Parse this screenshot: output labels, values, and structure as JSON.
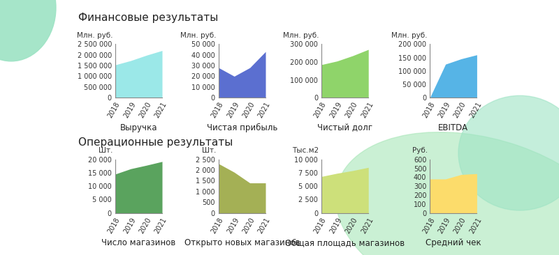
{
  "headings": [
    "Финансовые результаты",
    "Операционные результаты"
  ],
  "chart_data": [
    {
      "type": "area",
      "title": "Выручка",
      "ylabel": "Млн. руб.",
      "categories": [
        "2018",
        "2019",
        "2020",
        "2021"
      ],
      "values": [
        1530000,
        1730000,
        1980000,
        2200000
      ],
      "color": "#9be8e8",
      "ylim": [
        0,
        2500000
      ],
      "yticks": [
        0,
        {
          "value": 500000,
          "label": "500 000"
        },
        {
          "value": 1000000,
          "label": "1 000 000"
        },
        {
          "value": 1500000,
          "label": "1 500 000"
        },
        {
          "value": 2000000,
          "label": "2 000 000"
        },
        {
          "value": 2500000,
          "label": "2 500 000"
        }
      ],
      "grid": false
    },
    {
      "type": "area",
      "title": "Чистая прибыль",
      "ylabel": "Млн. руб.",
      "categories": [
        "2018",
        "2019",
        "2020",
        "2021"
      ],
      "values": [
        28000,
        20000,
        28000,
        43000
      ],
      "color": "#5b6fd0",
      "ylim": [
        0,
        50000
      ],
      "yticks": [
        0,
        {
          "value": 10000,
          "label": "10 000"
        },
        {
          "value": 20000,
          "label": "20 000"
        },
        {
          "value": 30000,
          "label": "30 000"
        },
        {
          "value": 40000,
          "label": "40 000"
        },
        {
          "value": 50000,
          "label": "50 000"
        }
      ],
      "grid": false
    },
    {
      "type": "area",
      "title": "Чистый долг",
      "ylabel": "Млн. руб.",
      "categories": [
        "2018",
        "2019",
        "2020",
        "2021"
      ],
      "values": [
        185000,
        205000,
        235000,
        270000
      ],
      "color": "#8fd46a",
      "ylim": [
        0,
        300000
      ],
      "yticks": [
        0,
        {
          "value": 100000,
          "label": "100 000"
        },
        {
          "value": 200000,
          "label": "200 000"
        },
        {
          "value": 300000,
          "label": "300 000"
        }
      ],
      "grid": false
    },
    {
      "type": "area",
      "title": "EBITDA",
      "ylabel": "Млн. руб.",
      "categories": [
        "2018",
        "2019",
        "2020",
        "2021"
      ],
      "values": [
        0,
        125000,
        145000,
        160000
      ],
      "color": "#56b4e6",
      "ylim": [
        0,
        200000
      ],
      "yticks": [
        0,
        {
          "value": 50000,
          "label": "50 000"
        },
        {
          "value": 100000,
          "label": "100 000"
        },
        {
          "value": 150000,
          "label": "150 000"
        },
        {
          "value": 200000,
          "label": "200 000"
        }
      ],
      "grid": false
    },
    {
      "type": "area",
      "title": "Число магазинов",
      "ylabel": "Шт.",
      "categories": [
        "2018",
        "2019",
        "2020",
        "2021"
      ],
      "values": [
        14500,
        16500,
        17800,
        19200
      ],
      "color": "#5aa35e",
      "ylim": [
        0,
        20000
      ],
      "yticks": [
        0,
        {
          "value": 5000,
          "label": "5 000"
        },
        {
          "value": 10000,
          "label": "10 000"
        },
        {
          "value": 15000,
          "label": "15 000"
        },
        {
          "value": 20000,
          "label": "20 000"
        }
      ],
      "grid": false
    },
    {
      "type": "area",
      "title": "Открыто новых магазинов",
      "ylabel": "Шт.",
      "categories": [
        "2018",
        "2019",
        "2020",
        "2021"
      ],
      "values": [
        2300,
        1900,
        1400,
        1400
      ],
      "color": "#a4b055",
      "ylim": [
        0,
        2500
      ],
      "yticks": [
        0,
        500,
        {
          "value": 1000,
          "label": "1 000"
        },
        {
          "value": 1500,
          "label": "1 500"
        },
        {
          "value": 2000,
          "label": "2 000"
        },
        {
          "value": 2500,
          "label": "2 500"
        }
      ],
      "grid": false
    },
    {
      "type": "area",
      "title": "Общая площадь магазинов",
      "ylabel": "Тыс.м2",
      "categories": [
        "2018",
        "2019",
        "2020",
        "2021"
      ],
      "values": [
        6800,
        7400,
        7900,
        8500
      ],
      "color": "#cde07a",
      "ylim": [
        0,
        10000
      ],
      "yticks": [
        0,
        {
          "value": 2500,
          "label": "2 500"
        },
        {
          "value": 5000,
          "label": "5 000"
        },
        {
          "value": 7500,
          "label": "7 500"
        },
        {
          "value": 10000,
          "label": "10 000"
        }
      ],
      "grid": false
    },
    {
      "type": "area",
      "title": "Средний чек",
      "ylabel": "Руб.",
      "categories": [
        "2018",
        "2019",
        "2020",
        "2021"
      ],
      "values": [
        380,
        380,
        430,
        440
      ],
      "color": "#fcdc6b",
      "ylim": [
        0,
        600
      ],
      "yticks": [
        0,
        100,
        200,
        300,
        400,
        500,
        600
      ],
      "grid": false
    }
  ]
}
